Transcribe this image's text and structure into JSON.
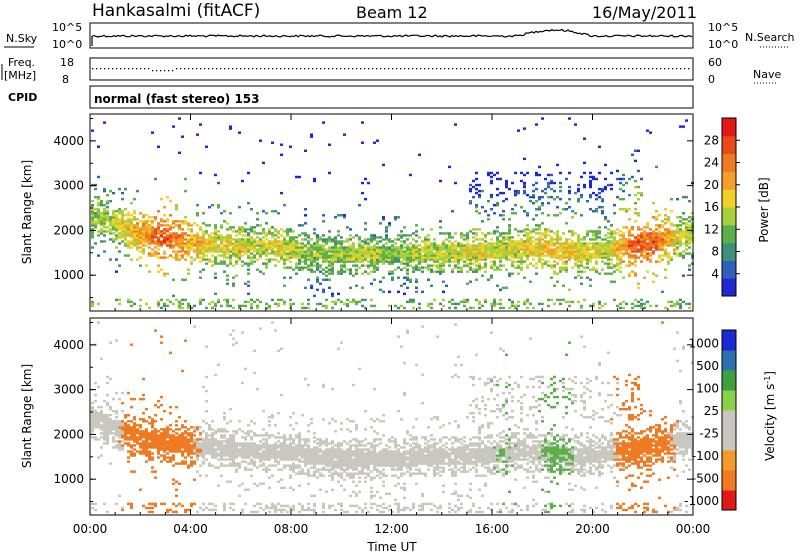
{
  "header": {
    "station": "Hankasalmi (fitACF)",
    "beam": "Beam 12",
    "date": "16/May/2011"
  },
  "noise_panel": {
    "left_label": "N.Sky",
    "left_ticks": [
      "10^5",
      "10^0"
    ],
    "right_ticks": [
      "10^5",
      "10^0"
    ],
    "right_label": "N.Search"
  },
  "freq_panel": {
    "left_label_1": "Freq.",
    "left_label_2": "[MHz]",
    "left_ticks": [
      "18",
      "8"
    ],
    "right_ticks": [
      "60",
      "0"
    ],
    "right_label": "Nave"
  },
  "cpid_panel": {
    "label": "CPID",
    "text": "normal (fast stereo) 153"
  },
  "x_axis": {
    "title": "Time UT",
    "ticks": [
      "00:00",
      "04:00",
      "08:00",
      "12:00",
      "16:00",
      "20:00",
      "00:00"
    ]
  },
  "colors": {
    "frame": "#000000",
    "power_scale": [
      "#1e28d2",
      "#2f5fb8",
      "#3f8f7a",
      "#5bb04a",
      "#a8cf3c",
      "#f2d02a",
      "#f2a02a",
      "#ef7a22",
      "#e84a1c",
      "#e01818"
    ],
    "velocity_scale": [
      "#e01818",
      "#ef7a22",
      "#f29a2a",
      "#c8c8c0",
      "#c8c8c0",
      "#8ad24a",
      "#3fa040",
      "#2f6fb0",
      "#1e28d2"
    ]
  },
  "chart_data": [
    {
      "type": "heatmap",
      "title": "",
      "xlabel": "",
      "ylabel": "Slant Range [km]",
      "y_ticks": [
        "1000",
        "2000",
        "3000",
        "4000"
      ],
      "ylim": [
        200,
        4600
      ],
      "xlim": [
        0,
        24
      ],
      "colorbar": {
        "label": "Power [dB]",
        "ticks": [
          "4",
          "8",
          "12",
          "16",
          "20",
          "24",
          "28"
        ],
        "range": [
          0,
          32
        ]
      },
      "series": [
        {
          "name": "",
          "hours": [
            0.2,
            1.0,
            2.0,
            2.8,
            3.5,
            4.5,
            5.5,
            6.5,
            7.5,
            8.5,
            9.5,
            10.5,
            11.5,
            12.5,
            13.5,
            14.5,
            15.5,
            16.5,
            17.5,
            18.5,
            19.5,
            20.5,
            21.5,
            22.5,
            23.5
          ],
          "range_km": [
            2300,
            2100,
            1900,
            1800,
            1750,
            1700,
            1650,
            1600,
            1600,
            1500,
            1450,
            1450,
            1450,
            1450,
            1500,
            1500,
            1500,
            1550,
            1600,
            1550,
            1500,
            1550,
            1650,
            1750,
            1850
          ],
          "power_db": [
            14,
            16,
            22,
            26,
            24,
            18,
            18,
            16,
            18,
            14,
            14,
            16,
            14,
            14,
            16,
            16,
            18,
            16,
            18,
            20,
            18,
            16,
            26,
            26,
            16
          ]
        }
      ]
    },
    {
      "type": "heatmap",
      "title": "",
      "xlabel": "Time UT",
      "ylabel": "Slant Range [km]",
      "y_ticks": [
        "1000",
        "2000",
        "3000",
        "4000"
      ],
      "ylim": [
        200,
        4600
      ],
      "xlim": [
        0,
        24
      ],
      "colorbar": {
        "label": "Velocity [m s^-1]",
        "ticks": [
          "1000",
          "500",
          "100",
          "25",
          "-25",
          "-100",
          "-500",
          "-1000"
        ]
      },
      "series": [
        {
          "name": "",
          "hours": [
            0.2,
            1.0,
            2.0,
            2.8,
            3.5,
            4.5,
            5.5,
            6.5,
            7.5,
            8.5,
            9.5,
            10.5,
            11.5,
            12.5,
            13.5,
            14.5,
            15.5,
            16.5,
            17.5,
            18.5,
            19.5,
            20.5,
            21.5,
            22.5,
            23.5
          ],
          "range_km": [
            2300,
            2100,
            1900,
            1800,
            1750,
            1700,
            1650,
            1600,
            1600,
            1500,
            1450,
            1450,
            1450,
            1450,
            1500,
            1500,
            1500,
            1550,
            1600,
            1550,
            1500,
            1550,
            1650,
            1750,
            1850
          ],
          "velocity_ms": [
            0,
            0,
            -300,
            -300,
            -200,
            0,
            0,
            0,
            0,
            0,
            0,
            0,
            0,
            0,
            0,
            0,
            0,
            50,
            0,
            100,
            0,
            0,
            -150,
            -150,
            0
          ]
        }
      ]
    }
  ]
}
